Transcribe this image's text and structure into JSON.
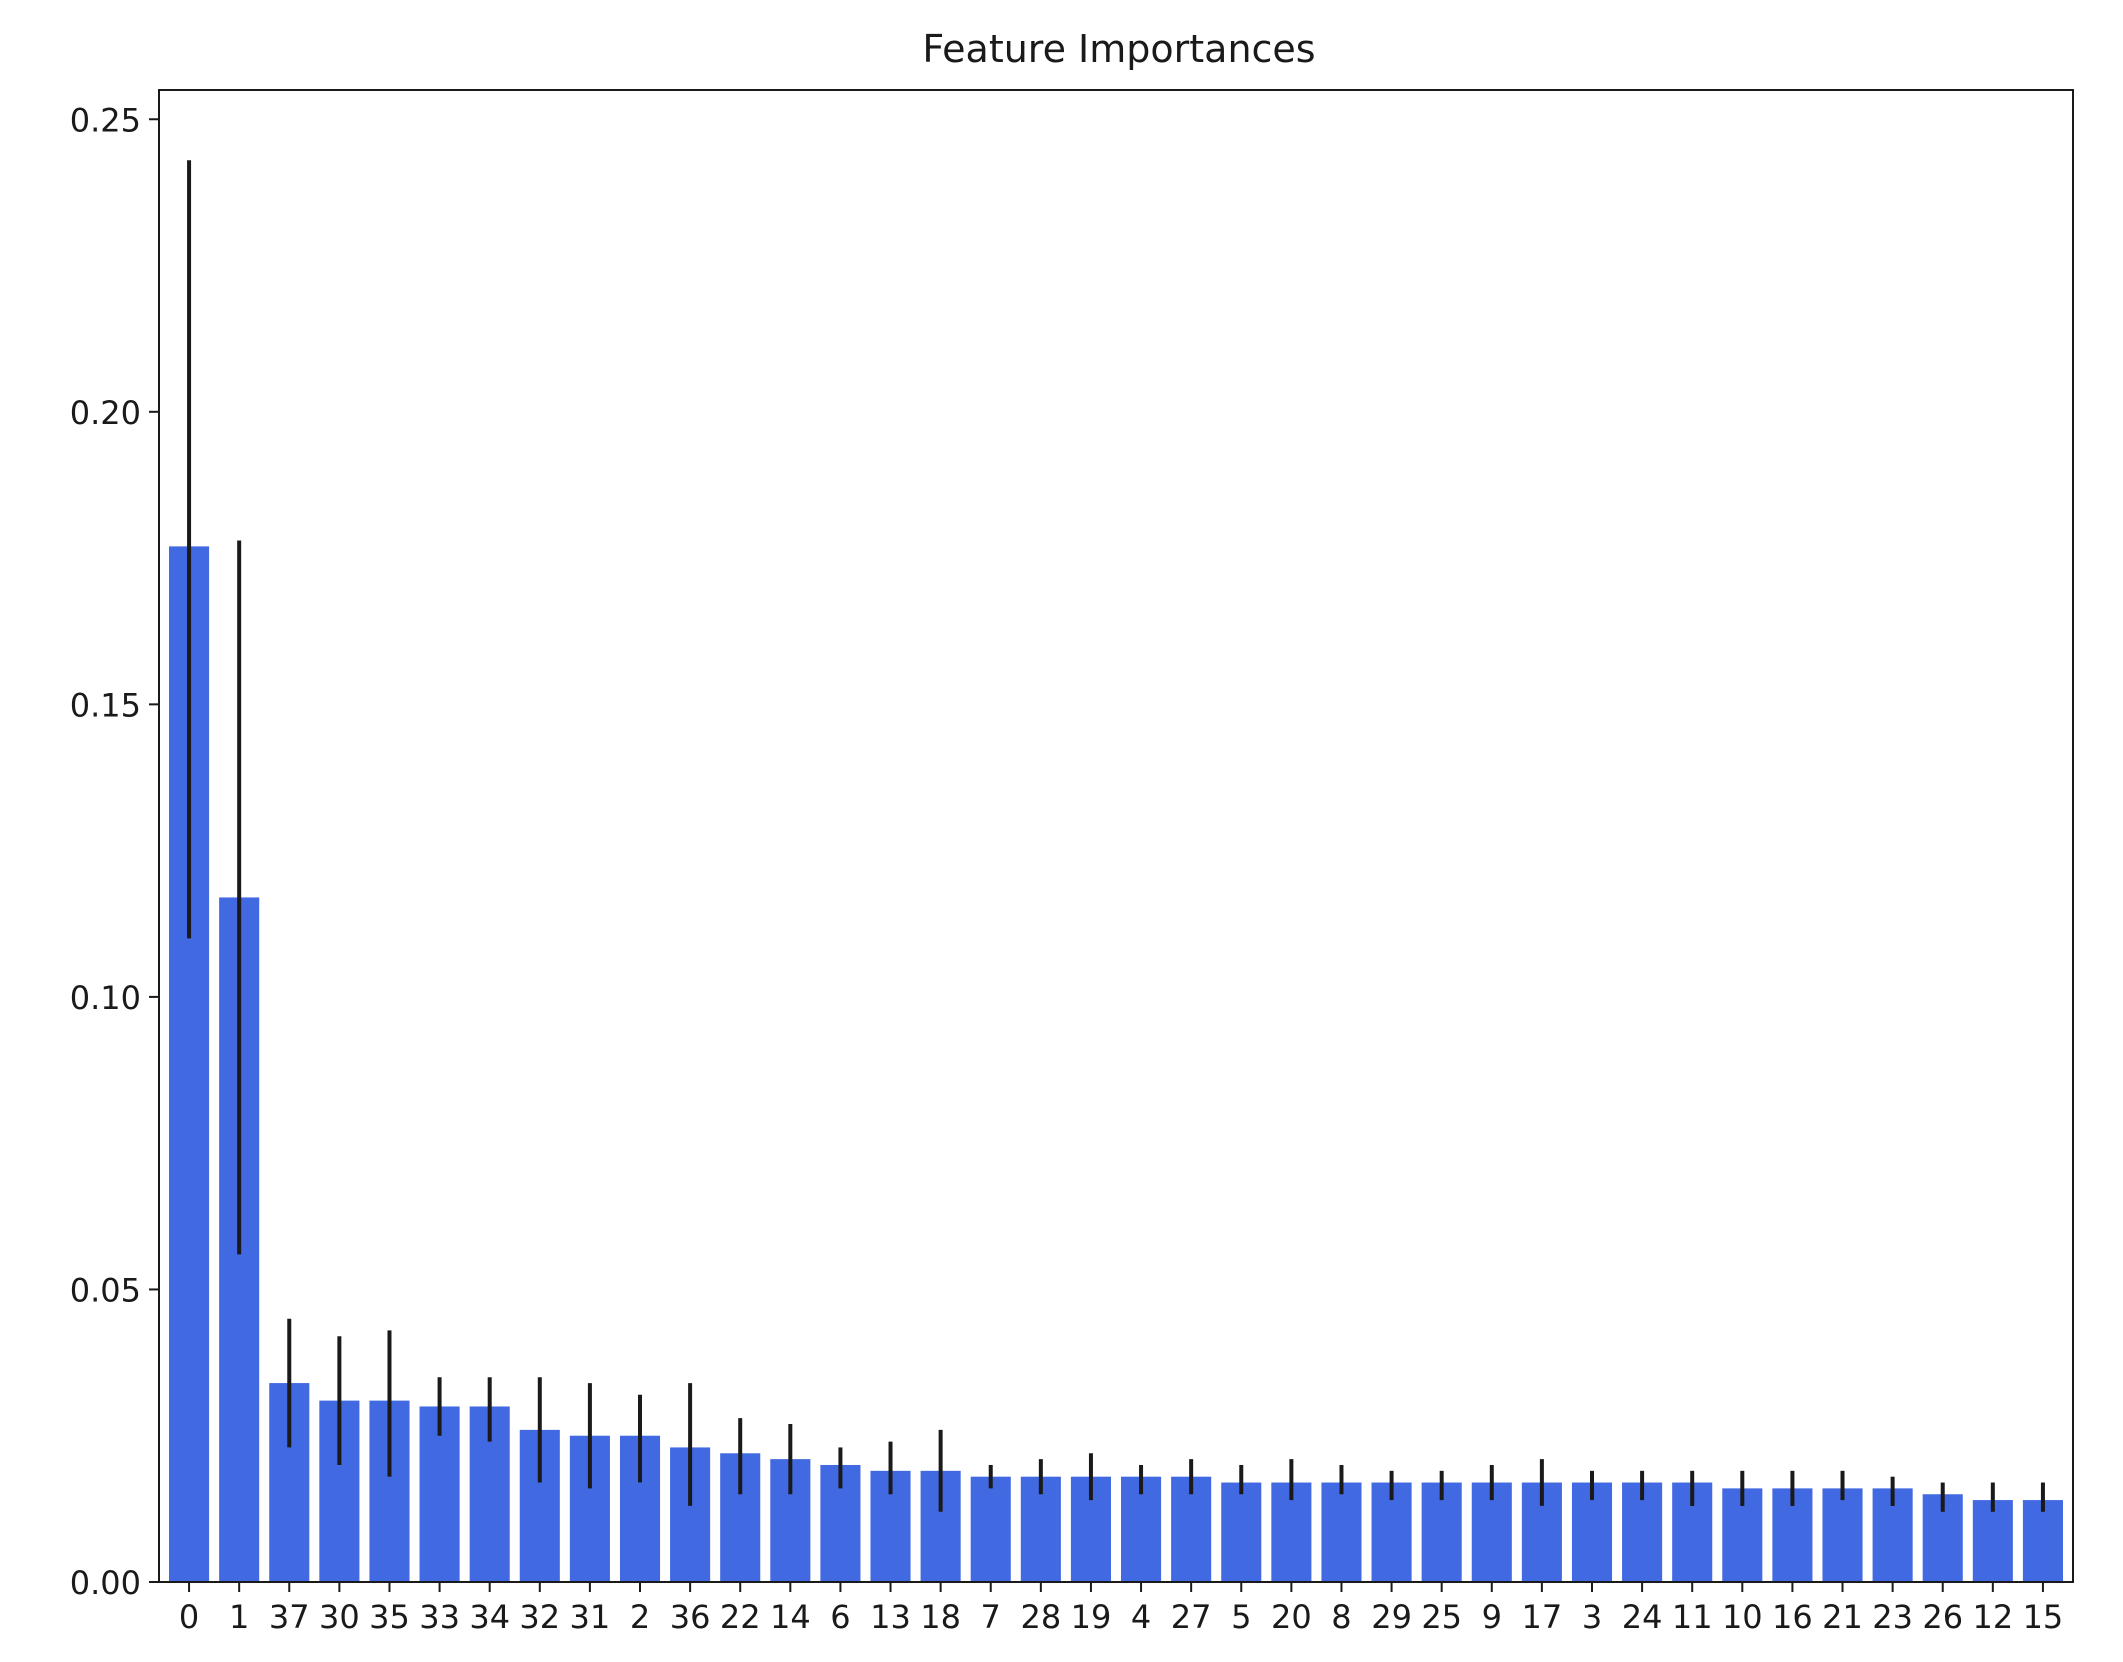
{
  "chart_data": {
    "type": "bar",
    "title": "Feature Importances",
    "xlabel": "",
    "ylabel": "",
    "categories": [
      "0",
      "1",
      "37",
      "30",
      "35",
      "33",
      "34",
      "32",
      "31",
      "2",
      "36",
      "22",
      "14",
      "6",
      "13",
      "18",
      "7",
      "28",
      "19",
      "4",
      "27",
      "5",
      "20",
      "8",
      "29",
      "25",
      "9",
      "17",
      "3",
      "24",
      "11",
      "10",
      "16",
      "21",
      "23",
      "26",
      "12",
      "15"
    ],
    "values": [
      0.177,
      0.117,
      0.034,
      0.031,
      0.031,
      0.03,
      0.03,
      0.026,
      0.025,
      0.025,
      0.023,
      0.022,
      0.021,
      0.02,
      0.019,
      0.019,
      0.018,
      0.018,
      0.018,
      0.018,
      0.018,
      0.017,
      0.017,
      0.017,
      0.017,
      0.017,
      0.017,
      0.017,
      0.017,
      0.017,
      0.017,
      0.016,
      0.016,
      0.016,
      0.016,
      0.015,
      0.014,
      0.014
    ],
    "error_low": [
      0.11,
      0.056,
      0.023,
      0.02,
      0.018,
      0.025,
      0.024,
      0.017,
      0.016,
      0.017,
      0.013,
      0.015,
      0.015,
      0.016,
      0.015,
      0.012,
      0.016,
      0.015,
      0.014,
      0.015,
      0.015,
      0.015,
      0.014,
      0.015,
      0.014,
      0.014,
      0.014,
      0.013,
      0.014,
      0.014,
      0.013,
      0.013,
      0.013,
      0.014,
      0.013,
      0.012,
      0.012,
      0.012
    ],
    "error_high": [
      0.243,
      0.178,
      0.045,
      0.042,
      0.043,
      0.035,
      0.035,
      0.035,
      0.034,
      0.032,
      0.034,
      0.028,
      0.027,
      0.023,
      0.024,
      0.026,
      0.02,
      0.021,
      0.022,
      0.02,
      0.021,
      0.02,
      0.021,
      0.02,
      0.019,
      0.019,
      0.02,
      0.021,
      0.019,
      0.019,
      0.019,
      0.019,
      0.019,
      0.019,
      0.018,
      0.017,
      0.017,
      0.017
    ],
    "ylim": [
      0,
      0.255
    ],
    "yticks": [
      0.0,
      0.05,
      0.1,
      0.15,
      0.2,
      0.25
    ],
    "ytick_labels": [
      "0.00",
      "0.05",
      "0.10",
      "0.15",
      "0.20",
      "0.25"
    ],
    "bar_color": "#4169e1",
    "error_color": "#1a1a1a",
    "grid": false,
    "legend": "none"
  }
}
